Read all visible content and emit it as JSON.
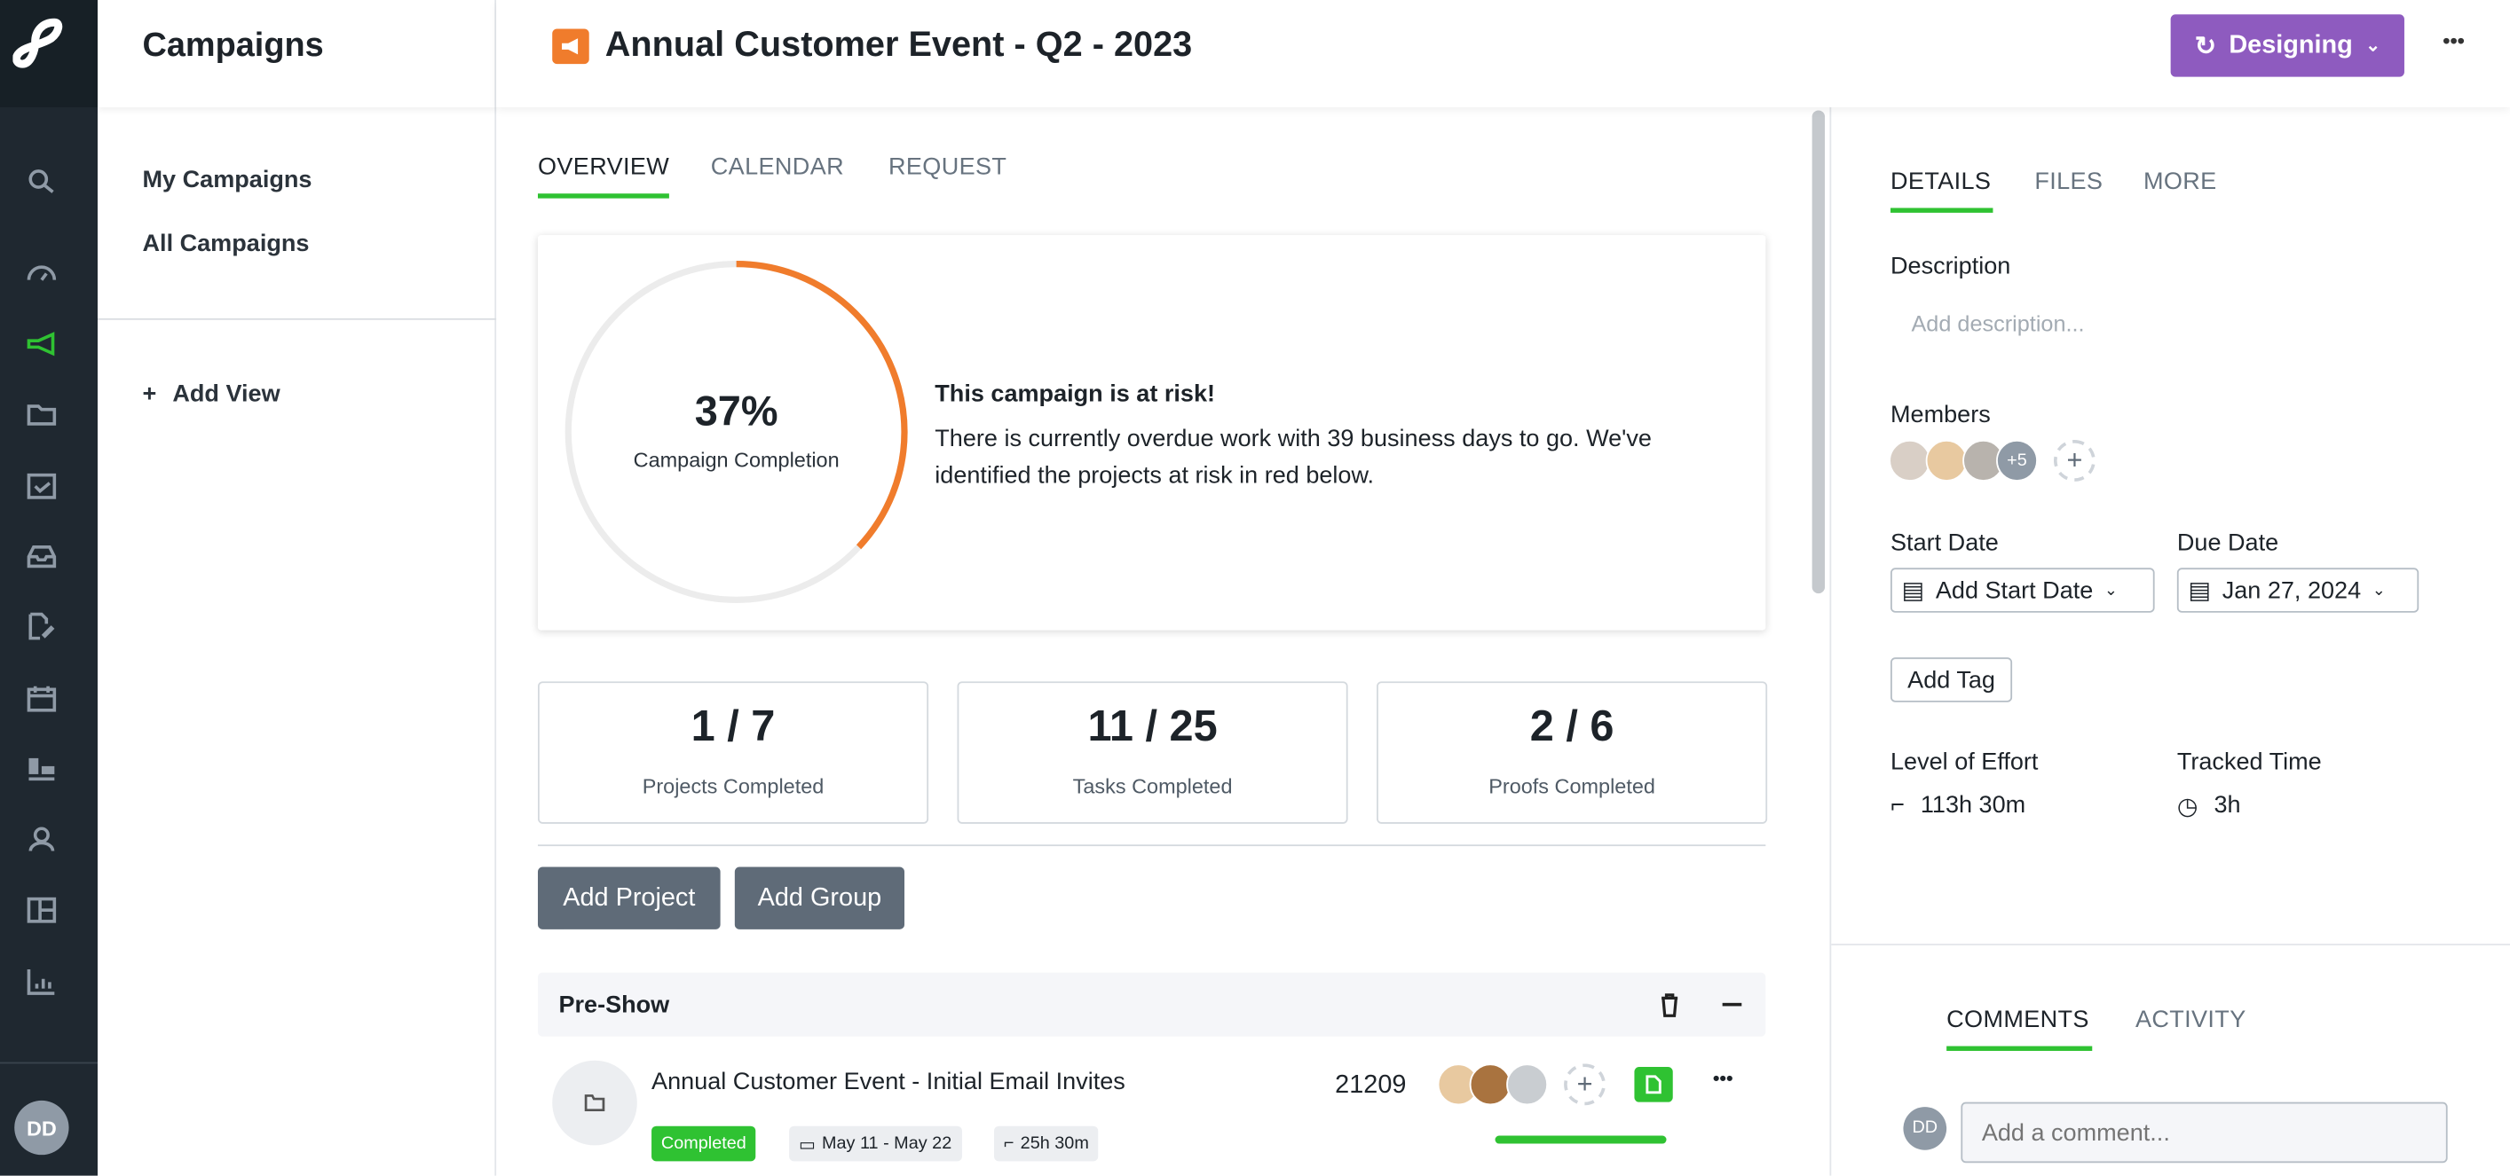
{
  "colors": {
    "accent_green": "#2fc232",
    "risk_orange": "#f07c2c",
    "status_purple": "#8e5bbf",
    "nav_bg": "#1f2830"
  },
  "nav": {
    "icons": [
      "search-icon",
      "dashboard-gauge-icon",
      "campaigns-megaphone-icon",
      "projects-folder-icon",
      "tasks-check-icon",
      "inbox-icon",
      "proofs-icon",
      "calendar-icon",
      "workload-icon",
      "people-icon",
      "templates-layout-icon",
      "reports-chart-icon"
    ],
    "active": "campaigns-megaphone-icon",
    "user_initials": "DD"
  },
  "sidebar": {
    "title": "Campaigns",
    "items": [
      {
        "label": "My Campaigns"
      },
      {
        "label": "All Campaigns"
      }
    ],
    "add_view": "Add View"
  },
  "header": {
    "title": "Annual Customer Event - Q2 - 2023",
    "status": "Designing",
    "more": "•••"
  },
  "main": {
    "tabs": [
      {
        "label": "OVERVIEW",
        "active": true
      },
      {
        "label": "CALENDAR"
      },
      {
        "label": "REQUEST"
      }
    ],
    "completion": {
      "percent": 37,
      "percent_label": "37%",
      "caption": "Campaign Completion"
    },
    "risk": {
      "title": "This campaign is at risk!",
      "message": "There is currently overdue work with 39 business days to go. We've identified the projects at risk in red below."
    },
    "stats": [
      {
        "value": "1 / 7",
        "label": "Projects Completed"
      },
      {
        "value": "11 / 25",
        "label": "Tasks Completed"
      },
      {
        "value": "2 / 6",
        "label": "Proofs Completed"
      }
    ],
    "buttons": {
      "add_project": "Add Project",
      "add_group": "Add Group"
    },
    "groups": [
      {
        "name": "Pre-Show",
        "projects": [
          {
            "name": "Annual Customer Event - Initial Email Invites",
            "id": "21209",
            "status": "Completed",
            "dates": "May 11 - May 22",
            "effort": "25h 30m",
            "progress": 100
          }
        ]
      }
    ]
  },
  "details": {
    "tabs": [
      {
        "label": "DETAILS",
        "active": true
      },
      {
        "label": "FILES"
      },
      {
        "label": "MORE"
      }
    ],
    "description_label": "Description",
    "description_placeholder": "Add description...",
    "members_label": "Members",
    "members_extra": "+5",
    "start_date_label": "Start Date",
    "start_date_value": "Add Start Date",
    "due_date_label": "Due Date",
    "due_date_value": "Jan 27, 2024",
    "add_tag": "Add Tag",
    "effort_label": "Level of Effort",
    "effort_value": "113h 30m",
    "tracked_label": "Tracked Time",
    "tracked_value": "3h"
  },
  "comments": {
    "tabs": [
      {
        "label": "COMMENTS",
        "active": true
      },
      {
        "label": "ACTIVITY"
      }
    ],
    "user_initials": "DD",
    "placeholder": "Add a comment..."
  }
}
